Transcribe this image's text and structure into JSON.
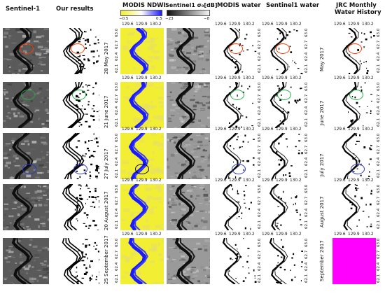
{
  "headers": {
    "sentinel1": "Sentinel-1",
    "our_results": "Our results",
    "modis_ndwi": "MODIS NDWI",
    "sentinel1_sigma": "Sentinel1 σ₀[dB]",
    "modis_water": "MODIS water",
    "sentinel1_water": "Sentinel1 water",
    "jrc_line1": "JRC  Monthly",
    "jrc_line2": "Water History"
  },
  "colorbars": {
    "ndwi_min": "−0.5",
    "ndwi_max": "0.5",
    "sigma_min": "−23",
    "sigma_max": "−8"
  },
  "lon_ticks": [
    "129.6",
    "129.9",
    "130.2"
  ],
  "lat_ticks": [
    "62.1",
    "62.4",
    "62.7",
    "63.0"
  ],
  "dates": [
    "28 May 2017",
    "21 June 2017",
    "27 July 2017",
    "20 August 2017",
    "25 September 2017"
  ],
  "jrc_months": [
    "May 2017",
    "June 2017",
    "July 2017",
    "August 2017",
    "September 2017"
  ],
  "colors": {
    "ndwi_low": "#f2ee33",
    "ndwi_mid": "#ffffff",
    "ndwi_high": "#1a1aff",
    "sar_dark": "#111111",
    "sar_light": "#cfcfcf",
    "marker_red": "#ff3a00",
    "marker_green": "#22aa44",
    "marker_blue": "#2a33cc",
    "marker_black": "#000000",
    "jrc_no_data": "#ff00ff"
  }
}
